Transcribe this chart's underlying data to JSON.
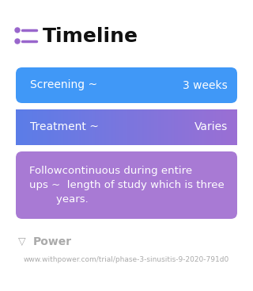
{
  "title": "Timeline",
  "background_color": "#ffffff",
  "cards": [
    {
      "label_left": "Screening ~",
      "label_right": "3 weeks",
      "color": "#4098f7",
      "gradient_end": "#4098f7",
      "text_color": "#ffffff",
      "multiline": false,
      "body_text": null
    },
    {
      "label_left": "Treatment ~",
      "label_right": "Varies",
      "color": "#5b7de8",
      "gradient_end": "#9b6fd4",
      "text_color": "#ffffff",
      "multiline": false,
      "body_text": null
    },
    {
      "label_left": null,
      "label_right": null,
      "color": "#a87ad4",
      "gradient_end": "#a87ad4",
      "text_color": "#ffffff",
      "multiline": true,
      "body_text": "Followcontinuous during entire\nups ~  length of study which is three\n        years."
    }
  ],
  "icon_color_dot": "#9966cc",
  "icon_color_line": "#9966cc",
  "footer_logo_text": "Power",
  "footer_url": "www.withpower.com/trial/phase-3-sinusitis-9-2020-791d0",
  "title_fontsize": 18,
  "card_fontsize": 10,
  "footer_fontsize": 7
}
